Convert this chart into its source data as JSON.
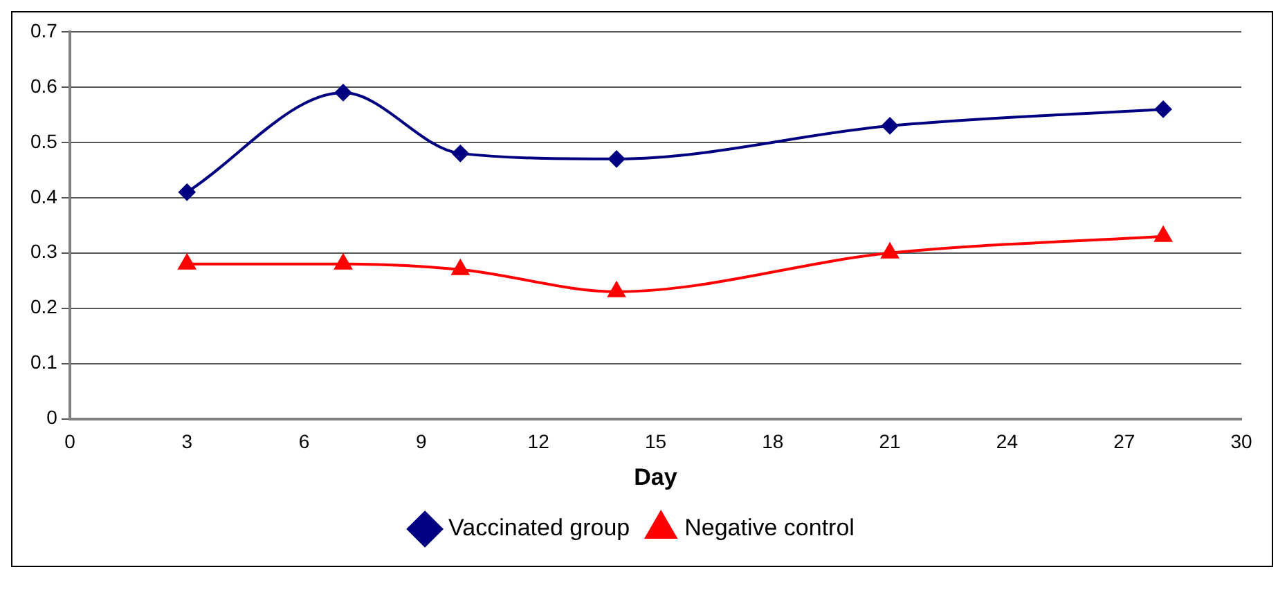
{
  "chart_data": {
    "type": "line",
    "xlabel": "Day",
    "x": [
      3,
      7,
      10,
      14,
      21,
      28
    ],
    "series": [
      {
        "name": "Vaccinated group",
        "color": "#000080",
        "marker": "diamond",
        "values": [
          0.41,
          0.59,
          0.48,
          0.47,
          0.53,
          0.56
        ]
      },
      {
        "name": "Negative control",
        "color": "#ff0000",
        "marker": "triangle",
        "values": [
          0.28,
          0.28,
          0.27,
          0.23,
          0.3,
          0.33
        ]
      }
    ],
    "xlim": [
      0,
      30
    ],
    "xticks": [
      0,
      3,
      6,
      9,
      12,
      15,
      18,
      21,
      24,
      27,
      30
    ],
    "ylim": [
      0,
      0.7
    ],
    "yticks": [
      0,
      0.1,
      0.2,
      0.3,
      0.4,
      0.5,
      0.6,
      0.7
    ],
    "grid": "y",
    "legend": "bottom"
  }
}
